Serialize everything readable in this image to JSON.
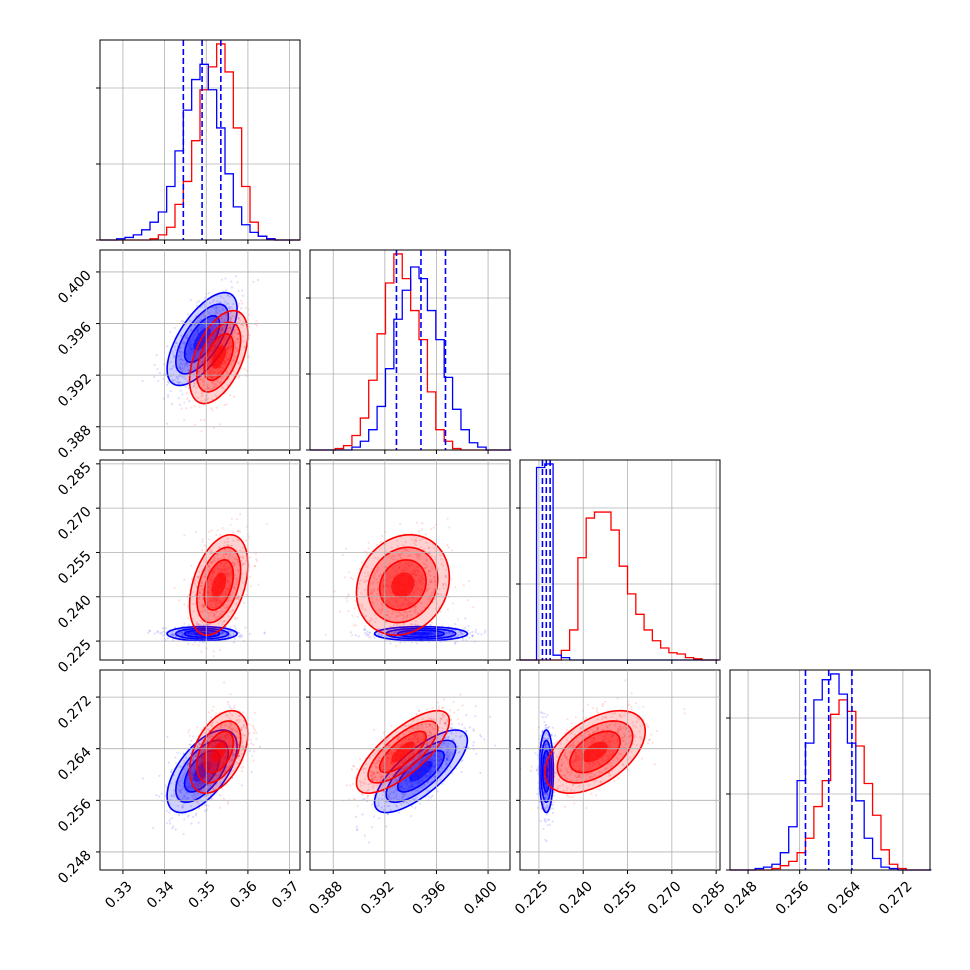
{
  "chart_data": {
    "type": "corner",
    "parameters": [
      {
        "ticks": [
          "0.33",
          "0.34",
          "0.35",
          "0.36",
          "0.37"
        ],
        "tick_values": [
          0.33,
          0.34,
          0.35,
          0.36,
          0.37
        ],
        "range": [
          0.3245,
          0.3725
        ]
      },
      {
        "ticks": [
          "0.388",
          "0.392",
          "0.396",
          "0.400"
        ],
        "tick_values": [
          0.388,
          0.392,
          0.396,
          0.4
        ],
        "range": [
          0.3862,
          0.4017
        ]
      },
      {
        "ticks": [
          "0.225",
          "0.240",
          "0.255",
          "0.270",
          "0.285"
        ],
        "tick_values": [
          0.225,
          0.24,
          0.255,
          0.27,
          0.285
        ],
        "range": [
          0.2186,
          0.2863
        ]
      },
      {
        "ticks": [
          "0.248",
          "0.256",
          "0.264",
          "0.272"
        ],
        "tick_values": [
          0.248,
          0.256,
          0.264,
          0.272
        ],
        "range": [
          0.2452,
          0.2762
        ]
      }
    ],
    "series": [
      {
        "color": "#ff0000",
        "mean": [
          0.353,
          0.3934,
          0.244,
          0.2635
        ],
        "std": [
          0.0035,
          0.0018,
          0.0085,
          0.0032
        ],
        "corr": [
          [
            1,
            0.5,
            0.4,
            0.45
          ],
          [
            0.5,
            1,
            0.15,
            0.75
          ],
          [
            0.4,
            0.15,
            1,
            0.5
          ],
          [
            0.45,
            0.75,
            0.5,
            1
          ]
        ],
        "hist": [
          {
            "edges": [
              0.3245,
              0.3265,
              0.3285,
              0.3305,
              0.3325,
              0.3345,
              0.3365,
              0.3385,
              0.3405,
              0.3425,
              0.3445,
              0.3465,
              0.3485,
              0.3505,
              0.3525,
              0.3545,
              0.3565,
              0.3585,
              0.3605,
              0.3625,
              0.3645,
              0.3665,
              0.3685,
              0.3705,
              0.3725
            ],
            "counts": [
              0,
              0,
              0,
              0,
              0,
              0,
              1,
              4,
              10,
              28,
              46,
              78,
              118,
              136,
              154,
              132,
              88,
              42,
              14,
              3,
              1,
              0,
              0,
              0
            ]
          },
          {
            "edges": [
              0.3862,
              0.38685,
              0.3875,
              0.38815,
              0.3888,
              0.38945,
              0.3901,
              0.39075,
              0.3914,
              0.39205,
              0.3927,
              0.39335,
              0.394,
              0.39465,
              0.3953,
              0.39595,
              0.3966,
              0.39725,
              0.3979,
              0.39855,
              0.3992,
              0.39985,
              0.4005,
              0.40115,
              0.4018
            ],
            "counts": [
              0,
              0,
              0,
              1,
              3,
              10,
              22,
              48,
              80,
              115,
              135,
              118,
              96,
              76,
              40,
              14,
              6,
              1,
              0,
              0,
              0,
              0,
              0,
              0
            ]
          },
          {
            "edges": [
              0.2186,
              0.2214,
              0.2242,
              0.227,
              0.2298,
              0.2326,
              0.2354,
              0.2382,
              0.241,
              0.2438,
              0.2466,
              0.2494,
              0.2522,
              0.255,
              0.2578,
              0.2606,
              0.2634,
              0.2662,
              0.269,
              0.2718,
              0.2746,
              0.2774,
              0.2802,
              0.283,
              0.2858
            ],
            "counts": [
              0,
              0,
              0,
              0,
              0,
              8,
              25,
              85,
              118,
              123,
              123,
              108,
              78,
              55,
              38,
              25,
              16,
              10,
              6,
              5,
              2,
              1,
              0,
              0
            ]
          },
          {
            "edges": [
              0.2452,
              0.2465,
              0.2478,
              0.2491,
              0.2504,
              0.2517,
              0.253,
              0.2543,
              0.2556,
              0.2569,
              0.2582,
              0.2595,
              0.2608,
              0.2621,
              0.2634,
              0.2647,
              0.266,
              0.2673,
              0.2686,
              0.2699,
              0.2712,
              0.2725,
              0.2738,
              0.2751,
              0.2764
            ],
            "counts": [
              0,
              0,
              0,
              0,
              0,
              1,
              3,
              6,
              12,
              22,
              44,
              62,
              108,
              118,
              110,
              86,
              60,
              38,
              14,
              4,
              1,
              0,
              0,
              0
            ]
          }
        ]
      },
      {
        "color": "#0000ff",
        "mean": [
          0.349,
          0.3948,
          0.2275,
          0.2605
        ],
        "std": [
          0.0042,
          0.0018,
          0.0012,
          0.0032
        ],
        "corr": [
          [
            1,
            0.65,
            0.0,
            0.6
          ],
          [
            0.65,
            1,
            0.0,
            0.75
          ],
          [
            0.0,
            0.0,
            1,
            0.0
          ],
          [
            0.6,
            0.75,
            0.0,
            1
          ]
        ],
        "quantiles": [
          [
            0.3445,
            0.349,
            0.3535
          ],
          [
            0.3929,
            0.3948,
            0.3967
          ],
          [
            0.2262,
            0.2275,
            0.2288
          ],
          [
            0.2569,
            0.2605,
            0.2641
          ]
        ],
        "hist": [
          {
            "edges": [
              0.3245,
              0.3265,
              0.3285,
              0.3305,
              0.3325,
              0.3345,
              0.3365,
              0.3385,
              0.3405,
              0.3425,
              0.3445,
              0.3465,
              0.3485,
              0.3505,
              0.3525,
              0.3545,
              0.3565,
              0.3585,
              0.3605,
              0.3625,
              0.3645,
              0.3665,
              0.3685,
              0.3705,
              0.3725
            ],
            "counts": [
              0,
              0,
              1,
              2,
              4,
              8,
              14,
              22,
              42,
              70,
              102,
              126,
              138,
              118,
              88,
              52,
              26,
              12,
              6,
              3,
              1,
              0,
              0,
              0
            ]
          },
          {
            "edges": [
              0.3862,
              0.38685,
              0.3875,
              0.38815,
              0.3888,
              0.38945,
              0.3901,
              0.39075,
              0.3914,
              0.39205,
              0.3927,
              0.39335,
              0.394,
              0.39465,
              0.3953,
              0.39595,
              0.3966,
              0.39725,
              0.3979,
              0.39855,
              0.3992,
              0.39985,
              0.4005,
              0.40115,
              0.4018
            ],
            "counts": [
              0,
              0,
              0,
              0,
              0,
              2,
              6,
              14,
              30,
              56,
              90,
              110,
              126,
              118,
              96,
              76,
              50,
              28,
              14,
              5,
              2,
              0,
              0,
              0
            ]
          },
          {
            "edges": [
              0.2186,
              0.2214,
              0.2242,
              0.227,
              0.2298,
              0.2326,
              0.2354,
              0.2382,
              0.241,
              0.2438,
              0.2466,
              0.2494,
              0.2522,
              0.255,
              0.2578,
              0.2606,
              0.2634,
              0.2662,
              0.269,
              0.2718,
              0.2746,
              0.2774,
              0.2802,
              0.283,
              0.2858
            ],
            "counts": [
              0,
              0,
              160,
              163,
              4,
              2,
              0,
              0,
              0,
              0,
              0,
              0,
              0,
              0,
              0,
              0,
              0,
              0,
              0,
              0,
              0,
              0,
              0,
              0
            ]
          },
          {
            "edges": [
              0.2452,
              0.2465,
              0.2478,
              0.2491,
              0.2504,
              0.2517,
              0.253,
              0.2543,
              0.2556,
              0.2569,
              0.2582,
              0.2595,
              0.2608,
              0.2621,
              0.2634,
              0.2647,
              0.266,
              0.2673,
              0.2686,
              0.2699,
              0.2712,
              0.2725,
              0.2738,
              0.2751,
              0.2764
            ],
            "counts": [
              0,
              0,
              0,
              1,
              2,
              4,
              12,
              30,
              62,
              88,
              118,
              132,
              136,
              122,
              88,
              48,
              22,
              8,
              2,
              1,
              0,
              0,
              0,
              0
            ]
          }
        ]
      }
    ],
    "grid": true,
    "title": "",
    "legend": false
  }
}
